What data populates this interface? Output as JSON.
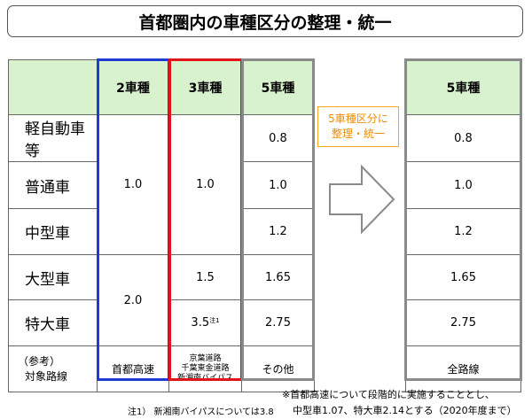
{
  "title": "首都圏内の車種区分の整理・統一",
  "table": {
    "headers": [
      "",
      "2車種",
      "3車種",
      "5車種"
    ],
    "vehicle_types": [
      "軽自動車等",
      "普通車",
      "中型車",
      "大型車",
      "特大車"
    ],
    "two_type": {
      "upper": "1.0",
      "lower": "2.0"
    },
    "three_type": {
      "upper": "1.0",
      "large": "1.5",
      "special": "3.5",
      "special_note": "注1"
    },
    "five_type": [
      "0.8",
      "1.0",
      "1.2",
      "1.65",
      "2.75"
    ],
    "reference_label_1": "（参考）",
    "reference_label_2": "対象路線",
    "two_type_routes": "首都高速",
    "three_type_routes": [
      "京葉道路",
      "千葉東金道路",
      "新湘南バイパス"
    ],
    "five_type_routes": "その他"
  },
  "arrow_label": [
    "5車種区分に",
    "整理・統一"
  ],
  "result_table": {
    "header": "5車種",
    "values": [
      "0.8",
      "1.0",
      "1.2",
      "1.65",
      "2.75"
    ],
    "routes": "全路線"
  },
  "footnote_1": "注1） 新湘南バイパスについては3.8",
  "footnote_2a": "※首都高速について段階的に実施することとし、",
  "footnote_2b": "中型車1.07、特大車2.14とする（2020年度まで）"
}
